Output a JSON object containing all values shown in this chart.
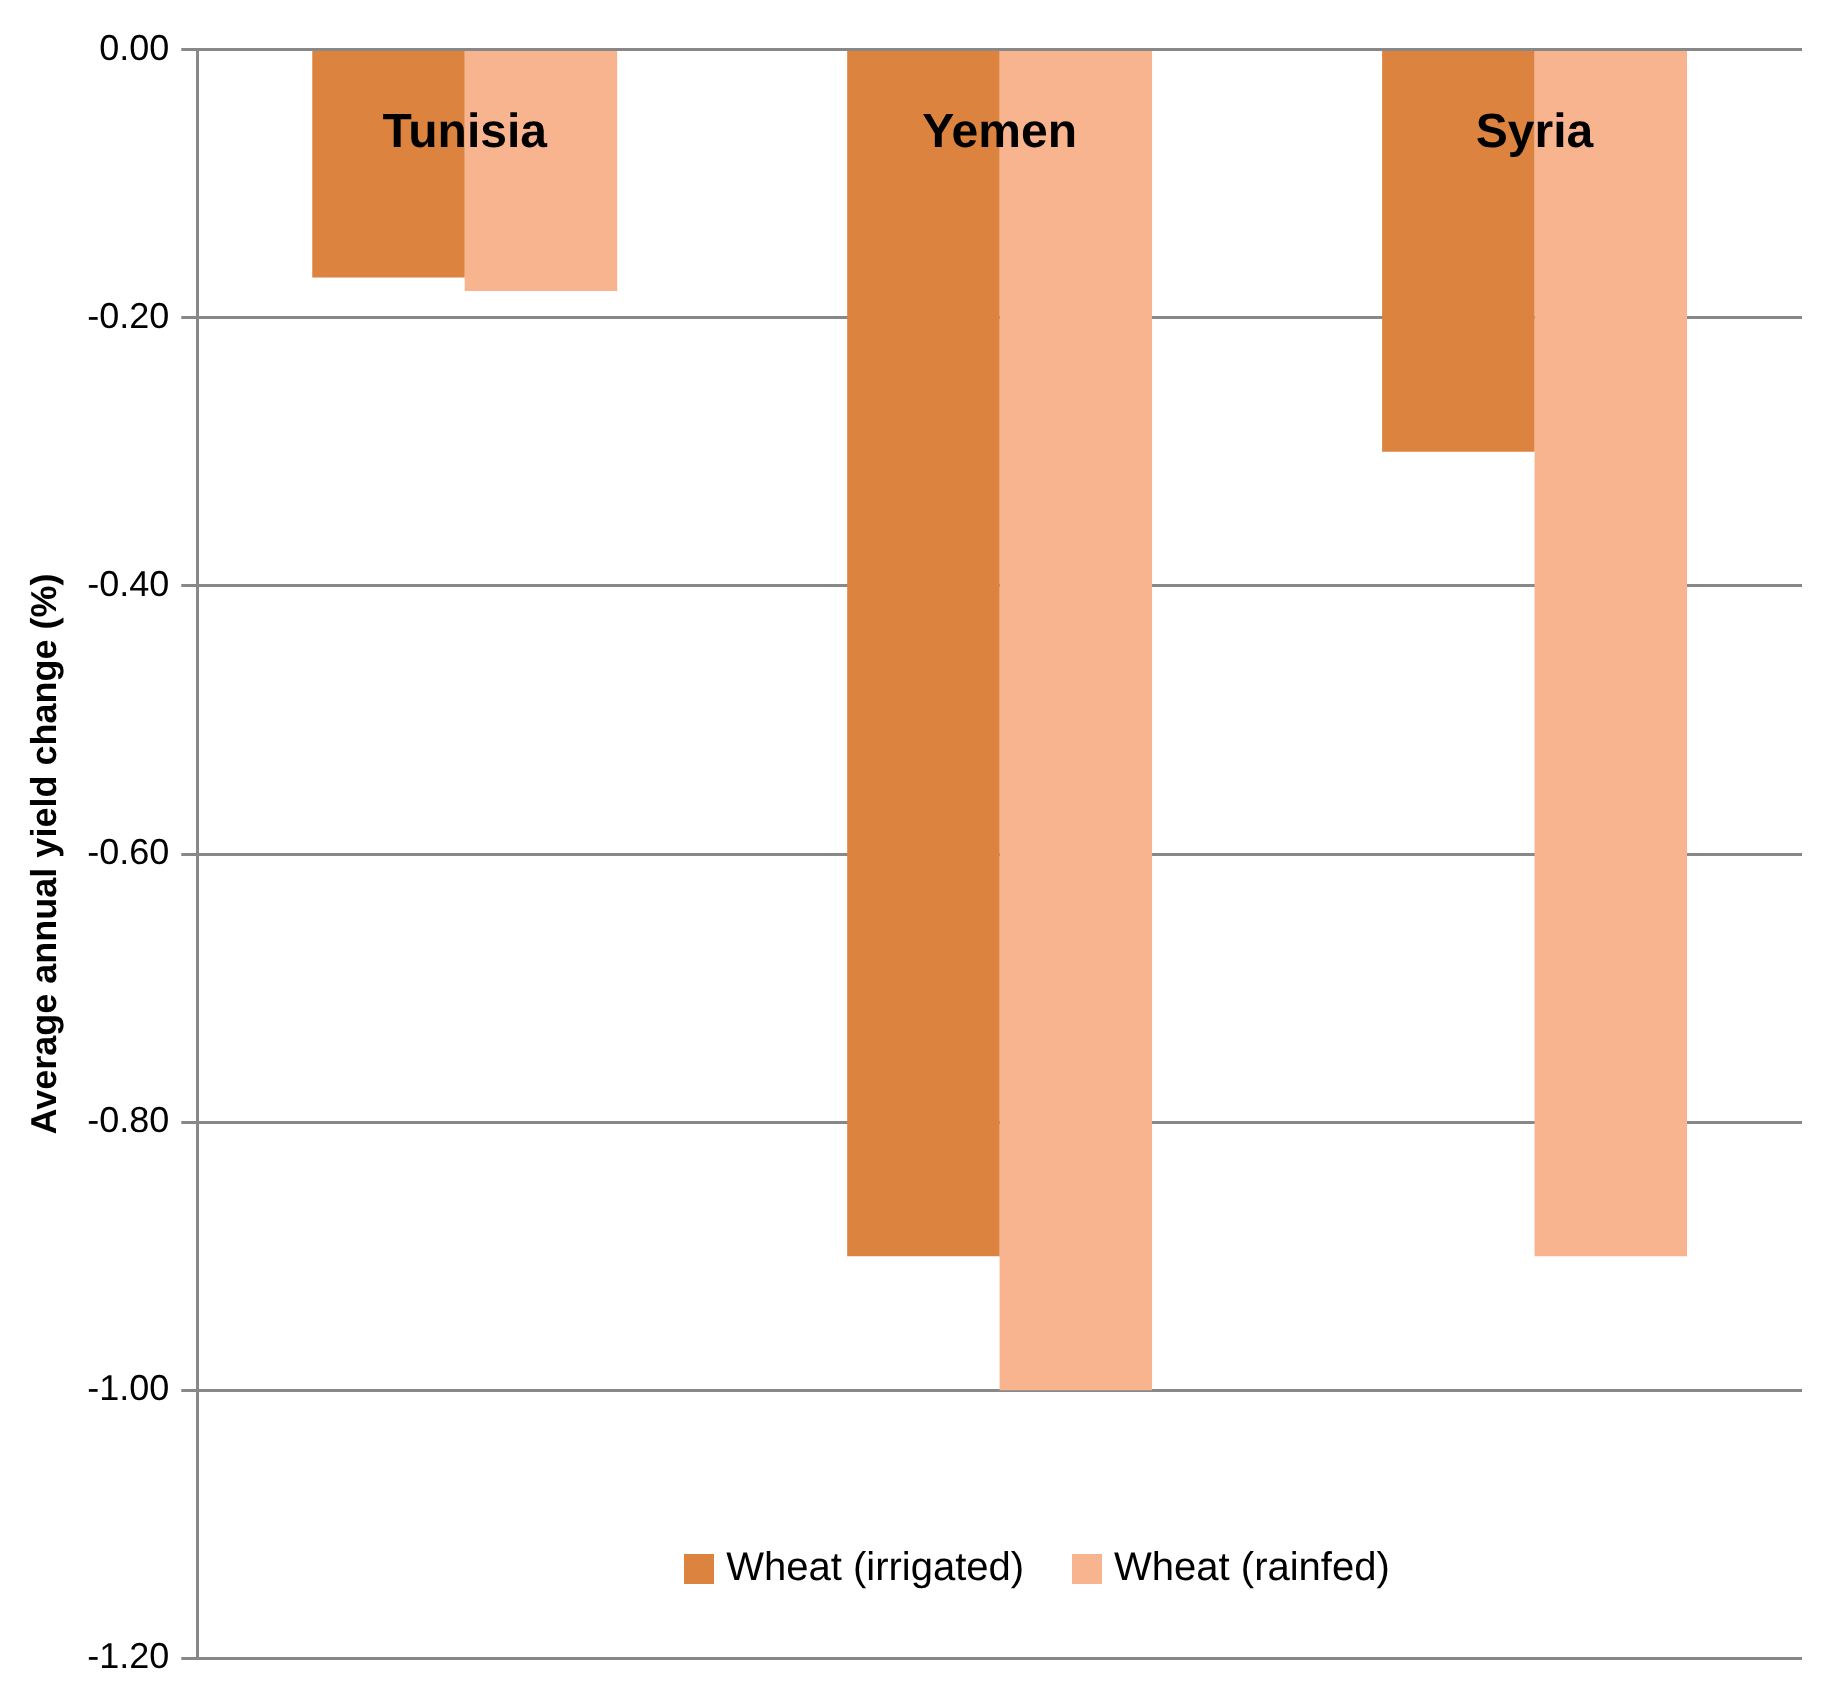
{
  "chart_data": {
    "type": "bar",
    "ylabel": "Average annual yield change (%)",
    "categories": [
      "Tunisia",
      "Yemen",
      "Syria"
    ],
    "series": [
      {
        "name": "Wheat (irrigated)",
        "color": "#dc843f",
        "values": [
          -0.17,
          -0.9,
          -0.3
        ]
      },
      {
        "name": "Wheat (rainfed)",
        "color": "#f8b38f",
        "values": [
          -0.18,
          -1.0,
          -0.9
        ]
      }
    ],
    "ylim": [
      -1.2,
      0
    ],
    "yticks": [
      {
        "value": 0,
        "label": "0.00"
      },
      {
        "value": -0.2,
        "label": "-0.20"
      },
      {
        "value": -0.4,
        "label": "-0.40"
      },
      {
        "value": -0.6,
        "label": "-0.60"
      },
      {
        "value": -0.8,
        "label": "-0.80"
      },
      {
        "value": -1,
        "label": "-1.00"
      },
      {
        "value": -1.2,
        "label": "-1.20"
      }
    ],
    "grid": "y",
    "legend": "bottom"
  }
}
